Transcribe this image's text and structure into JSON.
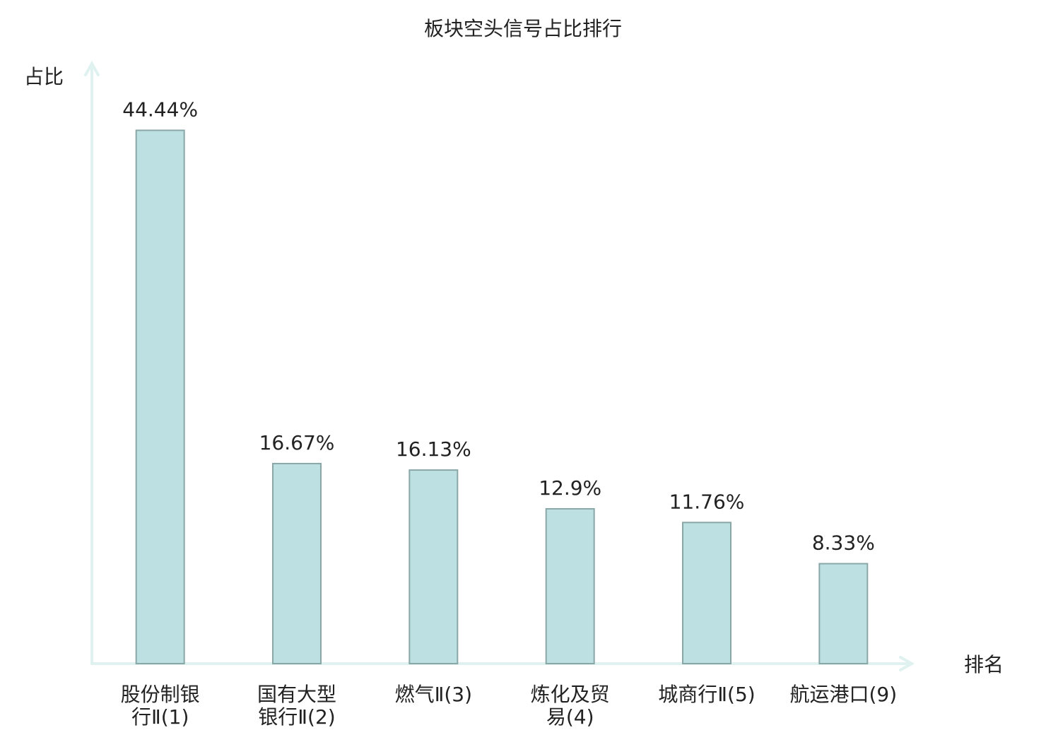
{
  "chart_data": {
    "type": "bar",
    "title": "板块空头信号占比排行",
    "y_label": "占比",
    "x_label": "排名",
    "categories": [
      "股份制银行Ⅱ(1)",
      "国有大型银行Ⅱ(2)",
      "燃气Ⅱ(3)",
      "炼化及贸易(4)",
      "城商行Ⅱ(5)",
      "航运港口(9)"
    ],
    "label_colors": [
      "#222222",
      "#222222",
      "#222222",
      "#222222",
      "#222222",
      "#e8221f"
    ],
    "values": [
      44.44,
      16.67,
      16.13,
      12.9,
      11.76,
      8.33
    ],
    "value_labels": [
      "44.44%",
      "16.67%",
      "16.13%",
      "12.9%",
      "11.76%",
      "8.33%"
    ],
    "color": "#bde0e3",
    "edge_color": "#8aa7a8",
    "axis_color": "#dff2ef",
    "ylim": [
      0,
      50
    ]
  }
}
